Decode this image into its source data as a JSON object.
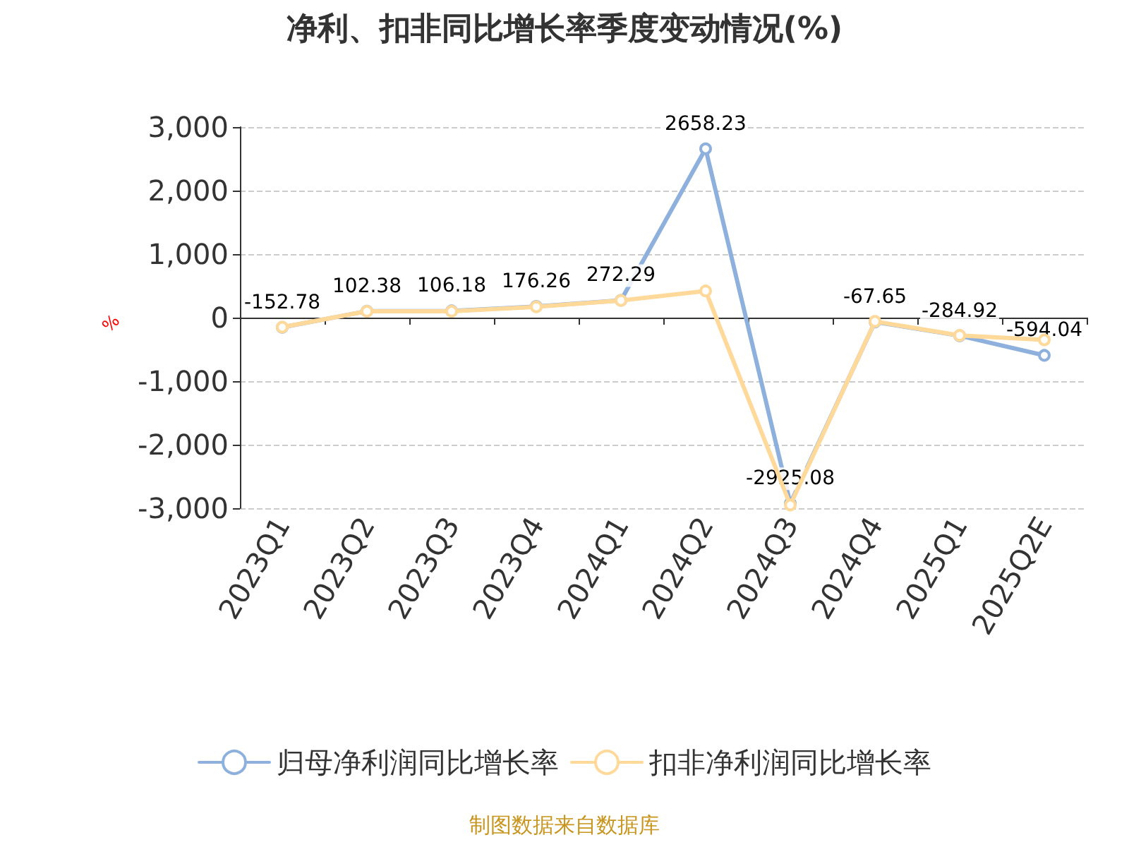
{
  "chart_data": {
    "type": "line",
    "title": "净利、扣非同比增长率季度变动情况(%)",
    "ylabel": "%",
    "categories": [
      "2023Q1",
      "2023Q2",
      "2023Q3",
      "2023Q4",
      "2024Q1",
      "2024Q2",
      "2024Q3",
      "2024Q4",
      "2025Q1",
      "2025Q2E"
    ],
    "series": [
      {
        "name": "归母净利润同比增长率",
        "color": "#8eb0dc",
        "values": [
          -152.78,
          102.38,
          106.18,
          176.26,
          272.29,
          2658.23,
          -2925.08,
          -67.65,
          -284.92,
          -594.04
        ],
        "value_labels": [
          "-152.78",
          "102.38",
          "106.18",
          "176.26",
          "272.29",
          "2658.23",
          "-2925.08",
          "-67.65",
          "-284.92",
          "-594.04"
        ]
      },
      {
        "name": "扣非净利润同比增长率",
        "color": "#ffd99a",
        "values": [
          -150,
          100,
          100,
          170,
          270,
          420,
          -2950,
          -60,
          -280,
          -350
        ]
      }
    ],
    "ylim": [
      -3000,
      3000
    ],
    "yticks": [
      {
        "value": -3000,
        "label": "-3,000"
      },
      {
        "value": -2000,
        "label": "-2,000"
      },
      {
        "value": -1000,
        "label": "-1,000"
      },
      0,
      {
        "value": 1000,
        "label": "1,000"
      },
      {
        "value": 2000,
        "label": "2,000"
      },
      {
        "value": 3000,
        "label": "3,000"
      }
    ],
    "grid": "y",
    "legend": "bottom",
    "marker": "circle",
    "line_style": "solid",
    "annotations": [
      "制图数据来自数据库"
    ]
  }
}
